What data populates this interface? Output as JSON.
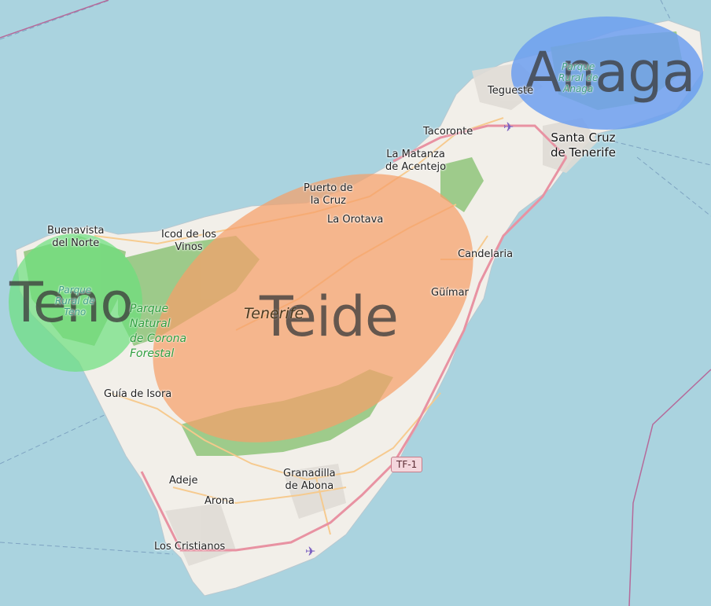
{
  "map": {
    "island_label": "Tenerife",
    "zones": [
      {
        "id": "teno",
        "label": "Teno",
        "color": "#6be07c"
      },
      {
        "id": "teide",
        "label": "Teide",
        "color": "#f5a06a"
      },
      {
        "id": "anaga",
        "label": "Anaga",
        "color": "#6d9ff0"
      }
    ],
    "places": {
      "teguiste": "Tegueste",
      "tacoronte": "Tacoronte",
      "santa_cruz": "Santa Cruz\nde Tenerife",
      "la_matanza": "La Matanza\nde Acentejo",
      "puerto_cruz": "Puerto de\nla Cruz",
      "la_orotava": "La Orotava",
      "buenavista": "Buenavista\ndel Norte",
      "icod": "Icod de los\nVinos",
      "candelaria": "Candelaria",
      "guimar": "Güímar",
      "guia_isora": "Guía de Isora",
      "adeje": "Adeje",
      "granadilla": "Granadilla\nde Abona",
      "arona": "Arona",
      "los_cristianos": "Los Cristianos"
    },
    "parks": {
      "anaga": "Parque\nRural de\nAnaga",
      "teno": "Parque\nRural de\nTeno",
      "corona": "Parque\nNatural\nde Corona\nForestal"
    },
    "road_shield": "TF-1",
    "colors": {
      "sea": "#aad3df",
      "land": "#f2efe9",
      "forest": "#8fc47a",
      "urban": "#e0dcd6",
      "motorway": "#e892a2",
      "road": "#f7c98b"
    }
  }
}
